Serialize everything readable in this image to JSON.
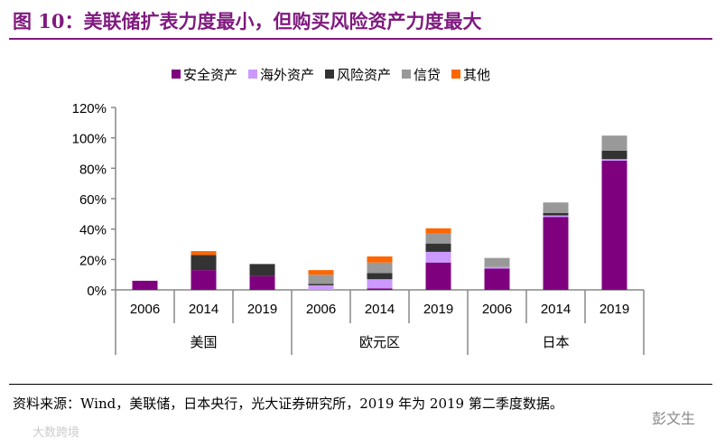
{
  "title": "图 10：美联储扩表力度最小，但购买风险资产力度最大",
  "source": "资料来源：Wind，美联储，日本央行，光大证券研究所，2019 年为 2019 第二季度数据。",
  "watermarks": [
    "彭文生",
    "大数跨境"
  ],
  "chart_data": {
    "type": "bar",
    "stacked": true,
    "ylim": [
      0,
      120
    ],
    "yticks": [
      0,
      20,
      40,
      60,
      80,
      100,
      120
    ],
    "ytick_format": "%",
    "legend_position": "top",
    "groups": [
      {
        "name": "美国",
        "categories": [
          "2006",
          "2014",
          "2019"
        ]
      },
      {
        "name": "欧元区",
        "categories": [
          "2006",
          "2014",
          "2019"
        ]
      },
      {
        "name": "日本",
        "categories": [
          "2006",
          "2014",
          "2019"
        ]
      }
    ],
    "series": [
      {
        "name": "安全资产",
        "color": "#7f007f",
        "values": [
          6,
          13,
          9,
          0,
          1,
          18,
          14,
          48,
          85
        ]
      },
      {
        "name": "海外资产",
        "color": "#cc99ff",
        "values": [
          0,
          0,
          0,
          3,
          6,
          7,
          1,
          1,
          1
        ]
      },
      {
        "name": "风险资产",
        "color": "#333333",
        "values": [
          0,
          10,
          8,
          1,
          4,
          5.5,
          0,
          1.5,
          5.5
        ]
      },
      {
        "name": "信贷",
        "color": "#999999",
        "values": [
          0,
          0,
          0,
          6,
          7,
          6.5,
          6,
          7,
          10
        ]
      },
      {
        "name": "其他",
        "color": "#ff6600",
        "values": [
          0,
          2.5,
          0,
          3,
          4,
          3.5,
          0,
          0,
          0
        ]
      }
    ]
  }
}
